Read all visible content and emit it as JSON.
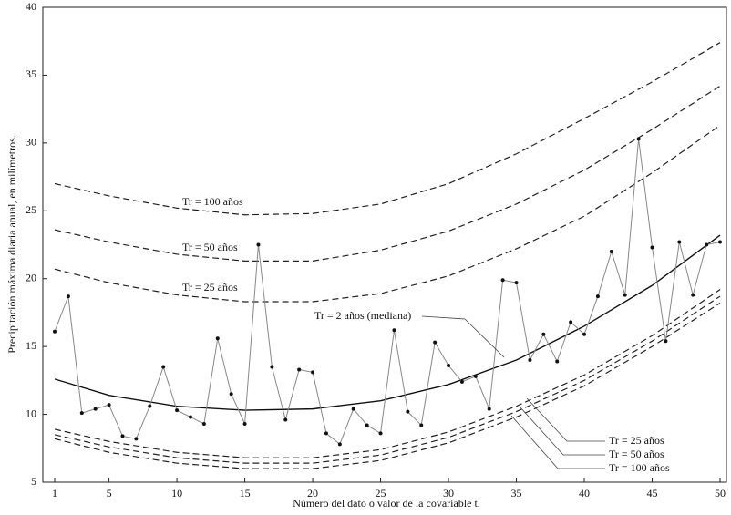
{
  "chart_data": {
    "type": "line",
    "x_label": "Número del dato o valor de la covariable t.",
    "y_label": "Precipitación máxima diaria anual, en milímetros.",
    "xlim": [
      1,
      50
    ],
    "ylim": [
      5,
      40
    ],
    "xticks": [
      1,
      5,
      10,
      15,
      20,
      25,
      30,
      35,
      40,
      45,
      50
    ],
    "yticks": [
      5,
      10,
      15,
      20,
      25,
      30,
      35,
      40
    ],
    "series": [
      {
        "name": "Tr = 100 años",
        "color": "#222222",
        "dash": true,
        "x": [
          1,
          5,
          10,
          15,
          20,
          25,
          30,
          35,
          40,
          45,
          50
        ],
        "values": [
          27.0,
          26.1,
          25.2,
          24.7,
          24.8,
          25.5,
          27.0,
          29.2,
          31.8,
          34.5,
          37.4
        ]
      },
      {
        "name": "Tr = 50 años",
        "color": "#222222",
        "dash": true,
        "x": [
          1,
          5,
          10,
          15,
          20,
          25,
          30,
          35,
          40,
          45,
          50
        ],
        "values": [
          23.6,
          22.7,
          21.8,
          21.3,
          21.3,
          22.1,
          23.5,
          25.5,
          28.0,
          31.0,
          34.2
        ]
      },
      {
        "name": "Tr = 25 años",
        "color": "#222222",
        "dash": true,
        "x": [
          1,
          5,
          10,
          15,
          20,
          25,
          30,
          35,
          40,
          45,
          50
        ],
        "values": [
          20.7,
          19.7,
          18.8,
          18.3,
          18.3,
          18.9,
          20.2,
          22.2,
          24.6,
          27.8,
          31.3
        ]
      },
      {
        "name": "Tr = 2 años (mediana)",
        "color": "#111111",
        "dash": false,
        "x": [
          1,
          5,
          10,
          15,
          20,
          25,
          30,
          35,
          40,
          45,
          50
        ],
        "values": [
          12.6,
          11.4,
          10.6,
          10.3,
          10.4,
          11.0,
          12.2,
          14.0,
          16.5,
          19.5,
          23.2
        ]
      },
      {
        "name": "Tr = 25 años",
        "color": "#222222",
        "dash": true,
        "x": [
          1,
          5,
          10,
          15,
          20,
          25,
          30,
          35,
          40,
          45,
          50
        ],
        "values": [
          8.9,
          8.0,
          7.2,
          6.8,
          6.8,
          7.4,
          8.7,
          10.6,
          12.9,
          15.8,
          19.2
        ]
      },
      {
        "name": "Tr = 50 años",
        "color": "#222222",
        "dash": true,
        "x": [
          1,
          5,
          10,
          15,
          20,
          25,
          30,
          35,
          40,
          45,
          50
        ],
        "values": [
          8.5,
          7.6,
          6.8,
          6.4,
          6.4,
          7.0,
          8.3,
          10.2,
          12.5,
          15.4,
          18.7
        ]
      },
      {
        "name": "Tr = 100 años",
        "color": "#222222",
        "dash": true,
        "x": [
          1,
          5,
          10,
          15,
          20,
          25,
          30,
          35,
          40,
          45,
          50
        ],
        "values": [
          8.2,
          7.2,
          6.4,
          6.0,
          6.0,
          6.6,
          7.9,
          9.8,
          12.1,
          15.0,
          18.2
        ]
      }
    ],
    "observed": {
      "color": "#888888",
      "marker_color": "#111111",
      "x": [
        1,
        2,
        3,
        4,
        5,
        6,
        7,
        8,
        9,
        10,
        11,
        12,
        13,
        14,
        15,
        16,
        17,
        18,
        19,
        20,
        21,
        22,
        23,
        24,
        25,
        26,
        27,
        28,
        29,
        30,
        31,
        32,
        33,
        34,
        35,
        36,
        37,
        38,
        39,
        40,
        41,
        42,
        43,
        44,
        45,
        46,
        47,
        48,
        49,
        50
      ],
      "values": [
        16.1,
        18.7,
        10.1,
        10.4,
        10.7,
        8.4,
        8.2,
        10.6,
        13.5,
        10.3,
        9.8,
        9.3,
        15.6,
        11.5,
        9.3,
        22.5,
        13.5,
        9.6,
        13.3,
        13.1,
        8.6,
        7.8,
        10.4,
        9.2,
        8.6,
        16.2,
        10.2,
        9.2,
        15.3,
        13.6,
        12.4,
        12.8,
        10.4,
        19.9,
        19.7,
        14.0,
        15.9,
        13.9,
        16.8,
        15.9,
        18.7,
        22.0,
        18.8,
        30.3,
        22.3,
        15.4,
        22.7,
        18.8,
        22.5,
        22.7
      ]
    }
  }
}
